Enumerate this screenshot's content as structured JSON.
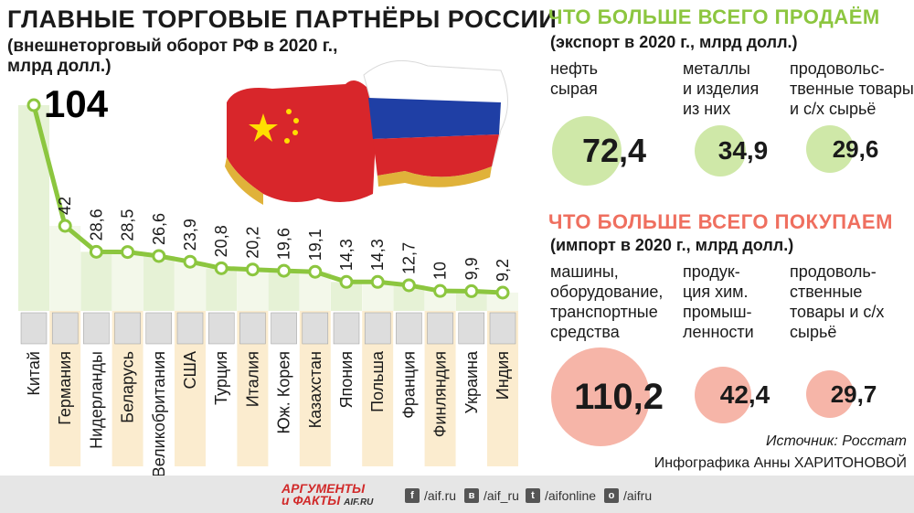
{
  "chart_data": {
    "type": "line",
    "title": "ГЛАВНЫЕ ТОРГОВЫЕ ПАРТНЁРЫ РОССИИ",
    "subtitle": "(внешнеторговый оборот РФ в 2020 г., млрд долл.)",
    "categories": [
      "Китай",
      "Германия",
      "Нидерланды",
      "Беларусь",
      "Великобритания",
      "США",
      "Турция",
      "Италия",
      "Юж. Корея",
      "Казахстан",
      "Япония",
      "Польша",
      "Франция",
      "Финляндия",
      "Украина",
      "Индия"
    ],
    "values": [
      104,
      42,
      28.6,
      28.5,
      26.6,
      23.9,
      20.8,
      20.2,
      19.6,
      19.1,
      14.3,
      14.3,
      12.7,
      10,
      9.9,
      9.2
    ],
    "value_labels": [
      "104",
      "42",
      "28,6",
      "28,5",
      "26,6",
      "23,9",
      "20,8",
      "20,2",
      "19,6",
      "19,1",
      "14,3",
      "14,3",
      "12,7",
      "10",
      "9,9",
      "9,2"
    ],
    "line_color": "#8cc63f"
  },
  "export": {
    "title": "ЧТО БОЛЬШЕ ВСЕГО ПРОДАЁМ",
    "subtitle": "(экспорт в 2020 г., млрд долл.)",
    "color": "#8cc63f",
    "bubble_color": "#cfe8a8",
    "items": [
      {
        "label": "нефть\nсырая",
        "value": "72,4"
      },
      {
        "label": "металлы\nи изделия\nиз них",
        "value": "34,9"
      },
      {
        "label": "продовольс-\nтвенные товары\nи с/х сырьё",
        "value": "29,6"
      }
    ]
  },
  "import": {
    "title": "ЧТО БОЛЬШЕ ВСЕГО ПОКУПАЕМ",
    "subtitle": "(импорт в 2020 г., млрд долл.)",
    "color": "#ef6f5f",
    "bubble_color": "#f6b5a8",
    "items": [
      {
        "label": "машины,\nоборудование,\nтранспортные\nсредства",
        "value": "110,2"
      },
      {
        "label": "продук-\nция хим.\nпромыш-\nленности",
        "value": "42,4"
      },
      {
        "label": "продоволь-\nственные\nтовары и с/х\nсырьё",
        "value": "29,7"
      }
    ]
  },
  "source": "Источник: Росстат",
  "credit": "Инфографика Анны ХАРИТОНОВОЙ",
  "footer": {
    "logo_line1": "АРГУМЕНТЫ",
    "logo_line2": "и ФАКТЫ",
    "logo_site": "AIF.RU",
    "social": [
      {
        "icon": "facebook-icon",
        "glyph": "f",
        "text": "/aif.ru"
      },
      {
        "icon": "vk-icon",
        "glyph": "в",
        "text": "/aif_ru"
      },
      {
        "icon": "twitter-icon",
        "glyph": "t",
        "text": "/aifonline"
      },
      {
        "icon": "odnoklassniki-icon",
        "glyph": "о",
        "text": "/aifru"
      }
    ]
  }
}
